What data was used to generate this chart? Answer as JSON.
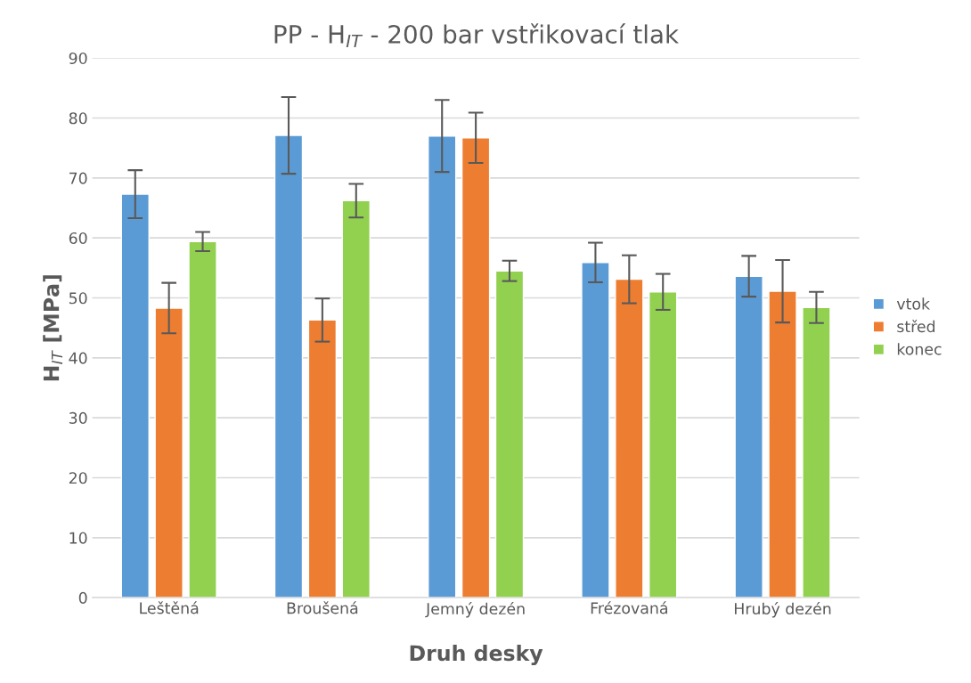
{
  "chart_data": {
    "type": "bar",
    "title": "PP - H$_{IT}$ - 200 bar vstřikovací tlak",
    "xlabel": "Druh desky",
    "ylabel": "H$_{IT}$ [MPa]",
    "categories": [
      "Leštěná",
      "Broušená",
      "Jemný dezén",
      "Frézovaná",
      "Hrubý dezén"
    ],
    "series": [
      {
        "name": "vtok",
        "color": "#5b9bd5",
        "values": [
          67.3,
          77.1,
          77.0,
          55.9,
          53.6
        ],
        "errors": [
          4.0,
          6.4,
          6.0,
          3.3,
          3.4
        ]
      },
      {
        "name": "střed",
        "color": "#ed7d31",
        "values": [
          48.3,
          46.3,
          76.7,
          53.1,
          51.1
        ],
        "errors": [
          4.2,
          3.6,
          4.2,
          4.0,
          5.2
        ]
      },
      {
        "name": "konec",
        "color": "#92d050",
        "values": [
          59.4,
          66.2,
          54.5,
          51.0,
          48.4
        ],
        "errors": [
          1.6,
          2.8,
          1.7,
          3.0,
          2.6
        ]
      }
    ],
    "ylim": [
      0,
      90
    ],
    "yticks": [
      0,
      10,
      20,
      30,
      40,
      50,
      60,
      70,
      80,
      90
    ],
    "grid": "y",
    "legend": "right"
  }
}
